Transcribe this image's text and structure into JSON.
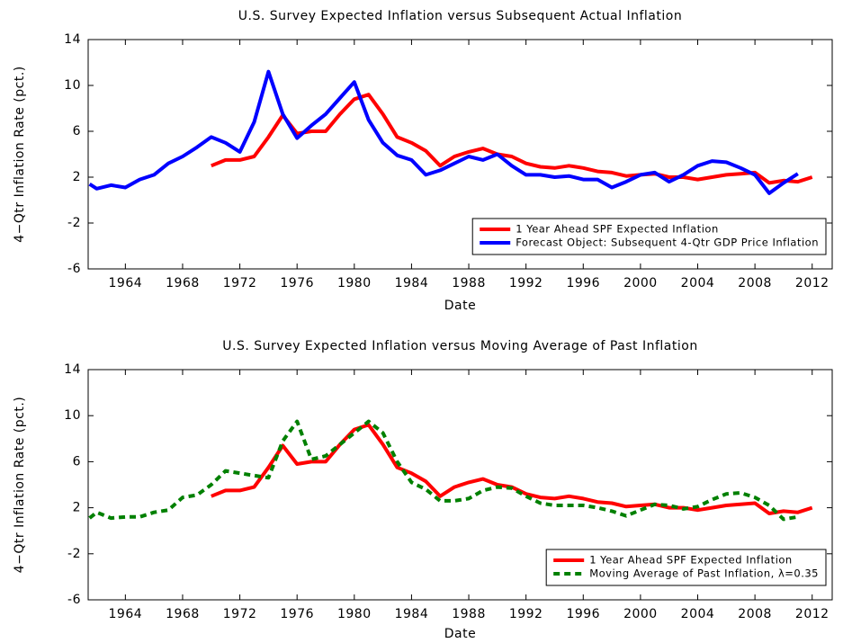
{
  "chart_data": [
    {
      "type": "line",
      "title": "U.S. Survey Expected Inflation versus Subsequent Actual Inflation",
      "xlabel": "Date",
      "ylabel": "4−Qtr Inflation Rate (pct.)",
      "x": [
        1961.5,
        1962,
        1963,
        1964,
        1965,
        1966,
        1967,
        1968,
        1969,
        1970,
        1971,
        1972,
        1973,
        1974,
        1975,
        1976,
        1977,
        1978,
        1979,
        1980,
        1981,
        1982,
        1983,
        1984,
        1985,
        1986,
        1987,
        1988,
        1989,
        1990,
        1991,
        1992,
        1993,
        1994,
        1995,
        1996,
        1997,
        1998,
        1999,
        2000,
        2001,
        2002,
        2003,
        2004,
        2005,
        2006,
        2007,
        2008,
        2009,
        2010,
        2011,
        2012
      ],
      "series": [
        {
          "name": "1 Year Ahead SPF Expected Inflation",
          "color": "#ff0000",
          "style": "solid",
          "values": [
            null,
            null,
            null,
            null,
            null,
            null,
            null,
            null,
            null,
            3.0,
            3.5,
            3.5,
            3.8,
            5.5,
            7.4,
            5.8,
            6.0,
            6.0,
            7.5,
            8.8,
            9.2,
            7.5,
            5.5,
            5.0,
            4.3,
            3.0,
            3.8,
            4.2,
            4.5,
            4.0,
            3.8,
            3.2,
            2.9,
            2.8,
            3.0,
            2.8,
            2.5,
            2.4,
            2.1,
            2.2,
            2.3,
            2.0,
            2.0,
            1.8,
            2.0,
            2.2,
            2.3,
            2.4,
            1.5,
            1.7,
            1.6,
            2.0
          ]
        },
        {
          "name": "Forecast Object: Subsequent 4-Qtr GDP Price Inflation",
          "color": "#0000ff",
          "style": "solid",
          "values": [
            1.4,
            1.0,
            1.3,
            1.1,
            1.8,
            2.2,
            3.2,
            3.8,
            4.6,
            5.5,
            5.0,
            4.2,
            6.8,
            11.2,
            7.5,
            5.4,
            6.5,
            7.5,
            8.9,
            10.3,
            7.0,
            5.0,
            3.9,
            3.5,
            2.2,
            2.6,
            3.2,
            3.8,
            3.5,
            4.0,
            3.0,
            2.2,
            2.2,
            2.0,
            2.1,
            1.8,
            1.8,
            1.1,
            1.6,
            2.2,
            2.4,
            1.6,
            2.2,
            3.0,
            3.4,
            3.3,
            2.8,
            2.2,
            0.6,
            1.5,
            2.3,
            null
          ]
        }
      ],
      "xlim": [
        1961.4,
        2013.4
      ],
      "ylim": [
        -6,
        14
      ],
      "xticks": [
        1964,
        1968,
        1972,
        1976,
        1980,
        1984,
        1988,
        1992,
        1996,
        2000,
        2004,
        2008,
        2012
      ],
      "yticks": [
        -6,
        -2,
        2,
        6,
        10,
        14
      ],
      "legend": "lower right"
    },
    {
      "type": "line",
      "title": "U.S. Survey Expected Inflation versus Moving Average of Past Inflation",
      "xlabel": "Date",
      "ylabel": "4−Qtr Inflation Rate (pct.)",
      "x": [
        1961.5,
        1962,
        1963,
        1964,
        1965,
        1966,
        1967,
        1968,
        1969,
        1970,
        1971,
        1972,
        1973,
        1974,
        1975,
        1976,
        1977,
        1978,
        1979,
        1980,
        1981,
        1982,
        1983,
        1984,
        1985,
        1986,
        1987,
        1988,
        1989,
        1990,
        1991,
        1992,
        1993,
        1994,
        1995,
        1996,
        1997,
        1998,
        1999,
        2000,
        2001,
        2002,
        2003,
        2004,
        2005,
        2006,
        2007,
        2008,
        2009,
        2010,
        2011,
        2012
      ],
      "series": [
        {
          "name": "1 Year Ahead SPF Expected Inflation",
          "color": "#ff0000",
          "style": "solid",
          "values": [
            null,
            null,
            null,
            null,
            null,
            null,
            null,
            null,
            null,
            3.0,
            3.5,
            3.5,
            3.8,
            5.5,
            7.4,
            5.8,
            6.0,
            6.0,
            7.5,
            8.8,
            9.2,
            7.5,
            5.5,
            5.0,
            4.3,
            3.0,
            3.8,
            4.2,
            4.5,
            4.0,
            3.8,
            3.2,
            2.9,
            2.8,
            3.0,
            2.8,
            2.5,
            2.4,
            2.1,
            2.2,
            2.3,
            2.0,
            2.0,
            1.8,
            2.0,
            2.2,
            2.3,
            2.4,
            1.5,
            1.7,
            1.6,
            2.0
          ]
        },
        {
          "name": "Moving Average of Past Inflation, λ=0.35",
          "color": "#008000",
          "style": "dashed",
          "values": [
            1.1,
            1.6,
            1.1,
            1.2,
            1.2,
            1.6,
            1.8,
            2.9,
            3.1,
            4.0,
            5.2,
            5.0,
            4.8,
            4.6,
            7.8,
            9.5,
            6.2,
            6.5,
            7.5,
            8.5,
            9.5,
            8.5,
            6.0,
            4.2,
            3.6,
            2.6,
            2.6,
            2.8,
            3.5,
            3.8,
            3.7,
            3.0,
            2.4,
            2.2,
            2.2,
            2.2,
            2.0,
            1.7,
            1.3,
            1.8,
            2.3,
            2.2,
            1.9,
            2.1,
            2.7,
            3.2,
            3.3,
            2.9,
            2.2,
            1.0,
            1.2,
            null
          ]
        }
      ],
      "xlim": [
        1961.4,
        2013.4
      ],
      "ylim": [
        -6,
        14
      ],
      "xticks": [
        1964,
        1968,
        1972,
        1976,
        1980,
        1984,
        1988,
        1992,
        1996,
        2000,
        2004,
        2008,
        2012
      ],
      "yticks": [
        -6,
        -2,
        2,
        6,
        10,
        14
      ],
      "legend": "lower right"
    }
  ]
}
